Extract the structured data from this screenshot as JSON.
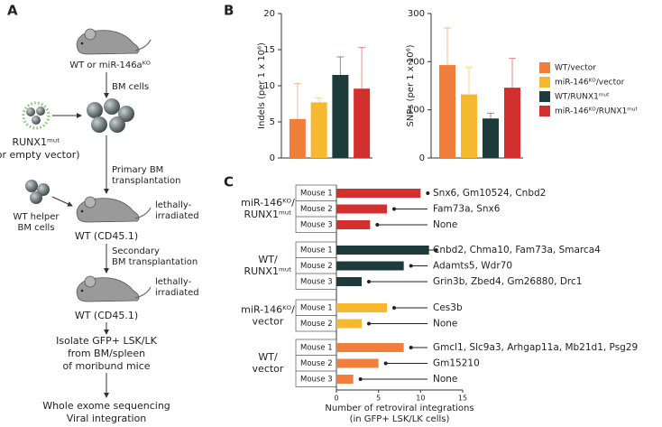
{
  "panels": {
    "a": "A",
    "b": "B",
    "c": "C"
  },
  "diagram": {
    "start": "WT or miR-146aᴷᴼ",
    "bm_cells": "BM cells",
    "vector": [
      "RUNX1ᵐᵘᵗ",
      "(or empty vector)"
    ],
    "primary": [
      "Primary BM",
      "transplantation"
    ],
    "irradiated_1": [
      "lethally-",
      "irradiated"
    ],
    "helper": [
      "WT helper",
      "BM cells"
    ],
    "recipient_1": "WT (CD45.1)",
    "secondary": [
      "Secondary",
      "BM transplantation"
    ],
    "irradiated_2": [
      "lethally-",
      "irradiated"
    ],
    "recipient_2": "WT (CD45.1)",
    "isolate": [
      "Isolate GFP+ LSK/LK",
      "from BM/spleen",
      "of moribund mice"
    ],
    "final": [
      "Whole exome sequencing",
      "Viral integration"
    ]
  },
  "chart_data": [
    {
      "type": "bar",
      "y_label": "Indels (per 1 x 10⁶)",
      "values": [
        5.4,
        7.7,
        11.5,
        9.6
      ],
      "errors": [
        4.9,
        0.6,
        2.5,
        5.7
      ],
      "colors": [
        "#f07f3c",
        "#f5b82e",
        "#1e3b3b",
        "#d2302f"
      ],
      "ylim": [
        0,
        20
      ],
      "yticks": [
        0,
        5,
        10,
        15,
        20
      ]
    },
    {
      "type": "bar",
      "y_label": "SNPs (per 1 x 10⁶)",
      "values": [
        193,
        132,
        82,
        146
      ],
      "errors": [
        77,
        56,
        11,
        61
      ],
      "colors": [
        "#f07f3c",
        "#f5b82e",
        "#1e3b3b",
        "#d2302f"
      ],
      "ylim": [
        0,
        300
      ],
      "yticks": [
        0,
        100,
        200,
        300
      ],
      "legend": [
        {
          "name": "WT/vector",
          "color": "#f07f3c"
        },
        {
          "name": "miR-146ᴷᴼ/vector",
          "color": "#f5b82e"
        },
        {
          "name": "WT/RUNX1ᵐᵘᵗ",
          "color": "#1e3b3b"
        },
        {
          "name": "miR-146ᴷᴼ/RUNX1ᵐᵘᵗ",
          "color": "#d2302f"
        }
      ]
    },
    {
      "type": "bar",
      "orientation": "horizontal",
      "x_label": [
        "Number of retroviral integrations",
        "(in GFP+ LSK/LK cells)"
      ],
      "xlim": [
        0,
        15
      ],
      "xticks": [
        0,
        5,
        10,
        15
      ],
      "groups": [
        {
          "label": [
            "miR-146ᴷᴼ/",
            "RUNX1ᵐᵘᵗ"
          ],
          "color": "#d2302f",
          "mice": [
            {
              "name": "Mouse 1",
              "value": 10,
              "genes": "Snx6, Gm10524, Cnbd2"
            },
            {
              "name": "Mouse 2",
              "value": 6,
              "genes": "Fam73a,  Snx6"
            },
            {
              "name": "Mouse 3",
              "value": 4,
              "genes": "None"
            }
          ]
        },
        {
          "label": [
            "WT/",
            "RUNX1ᵐᵘᵗ"
          ],
          "color": "#1e3b3b",
          "mice": [
            {
              "name": "Mouse 1",
              "value": 11,
              "genes": "Cnbd2, Chma10, Fam73a, Smarca4"
            },
            {
              "name": "Mouse 2",
              "value": 8,
              "genes": "Adamts5, Wdr70"
            },
            {
              "name": "Mouse 3",
              "value": 3,
              "genes": "Grin3b, Zbed4, Gm26880, Drc1"
            }
          ]
        },
        {
          "label": [
            "miR-146ᴷᴼ/",
            "vector"
          ],
          "color": "#f5b82e",
          "mice": [
            {
              "name": "Mouse 1",
              "value": 6,
              "genes": "Ces3b"
            },
            {
              "name": "Mouse 2",
              "value": 3,
              "genes": "None"
            }
          ]
        },
        {
          "label": [
            "WT/",
            "vector"
          ],
          "color": "#f07f3c",
          "mice": [
            {
              "name": "Mouse 1",
              "value": 8,
              "genes": "Gmcl1, Slc9a3, Arhgap11a, Mb21d1, Psg29"
            },
            {
              "name": "Mouse 2",
              "value": 5,
              "genes": "Gm15210"
            },
            {
              "name": "Mouse 3",
              "value": 2,
              "genes": "None"
            }
          ]
        }
      ]
    }
  ]
}
